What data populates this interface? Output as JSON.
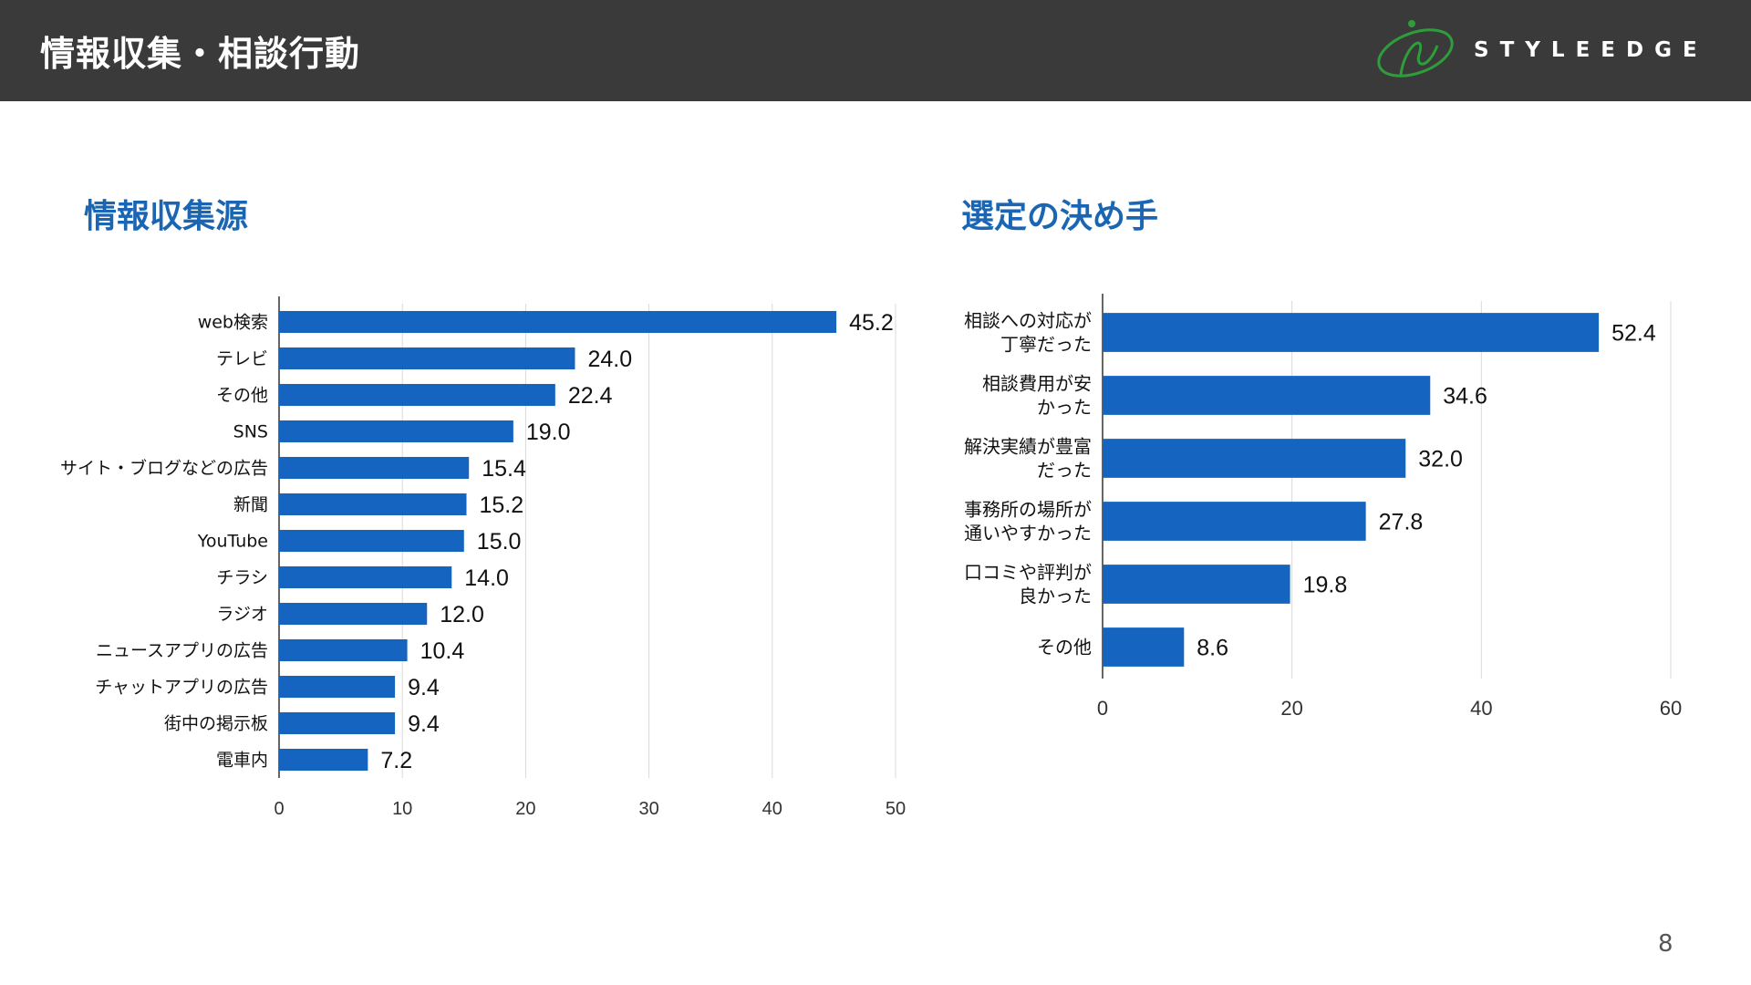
{
  "header": {
    "title": "情報収集・相談行動",
    "logo_text": "STYLEEDGE",
    "logo_icon": "styleedge-logo-icon"
  },
  "colors": {
    "bar": "#1565c0",
    "header_bg": "#3a3a3a",
    "title_blue": "#1a66b3",
    "logo_green": "#2e9e3a",
    "grid": "#d9d9d9"
  },
  "chart_data": [
    {
      "type": "bar",
      "orientation": "horizontal",
      "title": "情報収集源",
      "categories": [
        "web検索",
        "テレビ",
        "その他",
        "SNS",
        "サイト・ブログなどの広告",
        "新聞",
        "YouTube",
        "チラシ",
        "ラジオ",
        "ニュースアプリの広告",
        "チャットアプリの広告",
        "街中の掲示板",
        "電車内"
      ],
      "values": [
        45.2,
        24.0,
        22.4,
        19.0,
        15.4,
        15.2,
        15.0,
        14.0,
        12.0,
        10.4,
        9.4,
        9.4,
        7.2
      ],
      "value_labels": [
        "45.2",
        "24.0",
        "22.4",
        "19.0",
        "15.4",
        "15.2",
        "15.0",
        "14.0",
        "12.0",
        "10.4",
        "9.4",
        "9.4",
        "7.2"
      ],
      "xlim": [
        0,
        50
      ],
      "ticks": [
        "0",
        "10",
        "20",
        "30",
        "40",
        "50"
      ],
      "grid": true,
      "xlabel": "",
      "ylabel": ""
    },
    {
      "type": "bar",
      "orientation": "horizontal",
      "title": "選定の決め手",
      "categories": [
        [
          "相談への対応が",
          "丁寧だった"
        ],
        [
          "相談費用が安",
          "かった"
        ],
        [
          "解決実績が豊富",
          "だった"
        ],
        [
          "事務所の場所が",
          "通いやすかった"
        ],
        [
          "口コミや評判が",
          "良かった"
        ],
        [
          "その他"
        ]
      ],
      "values": [
        52.4,
        34.6,
        32.0,
        27.8,
        19.8,
        8.6
      ],
      "value_labels": [
        "52.4",
        "34.6",
        "32.0",
        "27.8",
        "19.8",
        "8.6"
      ],
      "xlim": [
        0,
        60
      ],
      "ticks": [
        "0",
        "20",
        "40",
        "60"
      ],
      "grid": true,
      "xlabel": "",
      "ylabel": ""
    }
  ],
  "page": {
    "number": "8"
  }
}
